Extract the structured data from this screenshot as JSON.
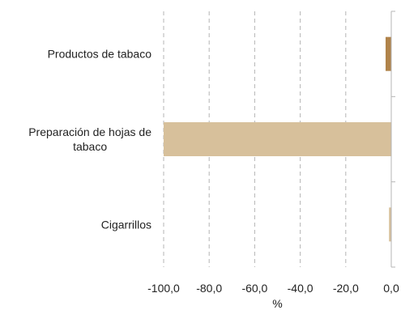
{
  "chart_data": {
    "type": "bar",
    "orientation": "horizontal",
    "categories": [
      "Productos de tabaco",
      "Preparación de hojas de tabaco",
      "Cigarrillos"
    ],
    "category_lines": [
      [
        "Productos de tabaco"
      ],
      [
        "Preparación de hojas de",
        "tabaco"
      ],
      [
        "Cigarrillos"
      ]
    ],
    "values": [
      -2.5,
      -100.0,
      -1.0
    ],
    "colors": [
      "#b0834a",
      "#d7c09b",
      "#d7c09b"
    ],
    "xlabel": "%",
    "ylabel": "",
    "xlim": [
      -100,
      0
    ],
    "xticks": [
      -100,
      -80,
      -60,
      -40,
      -20,
      0
    ],
    "xtick_labels": [
      "-100,0",
      "-80,0",
      "-60,0",
      "-40,0",
      "-20,0",
      "0,0"
    ],
    "grid": "vertical dashed"
  }
}
